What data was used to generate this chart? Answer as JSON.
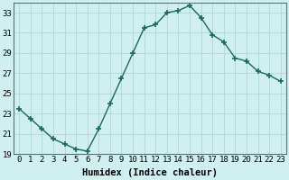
{
  "x": [
    0,
    1,
    2,
    3,
    4,
    5,
    6,
    7,
    8,
    9,
    10,
    11,
    12,
    13,
    14,
    15,
    16,
    17,
    18,
    19,
    20,
    21,
    22,
    23
  ],
  "y": [
    23.5,
    22.5,
    21.5,
    20.5,
    20.0,
    19.5,
    19.3,
    21.5,
    24.0,
    26.5,
    29.0,
    31.5,
    31.8,
    33.0,
    33.2,
    33.7,
    32.5,
    30.8,
    30.1,
    28.5,
    28.2,
    27.2,
    26.8,
    26.2
  ],
  "line_color": "#1a6b5a",
  "marker": "+",
  "marker_size": 4,
  "bg_color": "#d0efef",
  "grid_color": "#afd8d8",
  "xlabel": "Humidex (Indice chaleur)",
  "ylim": [
    19,
    34
  ],
  "xlim": [
    -0.5,
    23.5
  ],
  "yticks": [
    19,
    21,
    23,
    25,
    27,
    29,
    31,
    33
  ],
  "xticks": [
    0,
    1,
    2,
    3,
    4,
    5,
    6,
    7,
    8,
    9,
    10,
    11,
    12,
    13,
    14,
    15,
    16,
    17,
    18,
    19,
    20,
    21,
    22,
    23
  ],
  "xlabel_fontsize": 7.5,
  "tick_fontsize": 6.5,
  "lw": 1.0
}
